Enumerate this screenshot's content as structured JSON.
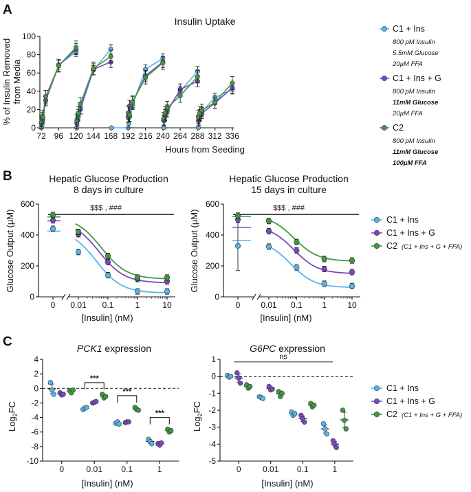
{
  "colors": {
    "c1": "#57b3ea",
    "c1g": "#7b46c2",
    "c2": "#3e9b3a"
  },
  "panels": [
    "A",
    "B",
    "C"
  ],
  "chart_data": [
    {
      "id": "A",
      "type": "line",
      "title": "Insulin Uptake",
      "xlabel": "Hours from Seeding",
      "ylabel": [
        "% of Insulin Removed",
        "from Media"
      ],
      "xlim": [
        70,
        338
      ],
      "ylim": [
        0,
        100
      ],
      "xticks": [
        72,
        96,
        120,
        144,
        168,
        192,
        216,
        240,
        264,
        288,
        312,
        336
      ],
      "yticks": [
        0,
        20,
        40,
        60,
        80,
        100
      ],
      "series": [
        {
          "name": "C1 + Ins",
          "color": "c1",
          "segments": [
            [
              [
                72,
                0
              ],
              [
                73,
                6
              ],
              [
                74,
                12
              ],
              [
                78,
                30
              ],
              [
                96,
                69
              ],
              [
                120,
                83
              ]
            ],
            [
              [
                121,
                0
              ],
              [
                122,
                8
              ],
              [
                123,
                12
              ],
              [
                126,
                20
              ],
              [
                144,
                63
              ],
              [
                168,
                86
              ]
            ],
            [
              [
                169,
                0
              ],
              [
                192,
                0
              ],
              [
                193,
                5
              ],
              [
                194,
                12
              ],
              [
                198,
                25
              ],
              [
                216,
                64
              ],
              [
                240,
                76
              ]
            ],
            [
              [
                241,
                0
              ],
              [
                242,
                8
              ],
              [
                243,
                12
              ],
              [
                246,
                20
              ],
              [
                264,
                40
              ],
              [
                288,
                62
              ]
            ],
            [
              [
                289,
                0
              ],
              [
                290,
                8
              ],
              [
                291,
                12
              ],
              [
                294,
                18
              ],
              [
                312,
                33
              ],
              [
                336,
                42
              ]
            ]
          ]
        },
        {
          "name": "C1 + Ins + G",
          "color": "c1g",
          "segments": [
            [
              [
                72,
                5
              ],
              [
                74,
                9
              ],
              [
                78,
                30
              ],
              [
                96,
                68
              ],
              [
                120,
                86
              ]
            ],
            [
              [
                121,
                5
              ],
              [
                123,
                14
              ],
              [
                126,
                22
              ],
              [
                144,
                64
              ],
              [
                168,
                72
              ]
            ],
            [
              [
                192,
                12
              ],
              [
                194,
                24
              ],
              [
                198,
                28
              ],
              [
                216,
                57
              ],
              [
                240,
                72
              ]
            ],
            [
              [
                241,
                8
              ],
              [
                243,
                14
              ],
              [
                246,
                18
              ],
              [
                264,
                42
              ],
              [
                288,
                51
              ]
            ],
            [
              [
                289,
                8
              ],
              [
                291,
                14
              ],
              [
                294,
                16
              ],
              [
                312,
                27
              ],
              [
                336,
                44
              ]
            ]
          ]
        },
        {
          "name": "C2",
          "color": "c2",
          "segments": [
            [
              [
                72,
                6
              ],
              [
                74,
                12
              ],
              [
                78,
                34
              ],
              [
                96,
                68
              ],
              [
                120,
                88
              ]
            ],
            [
              [
                121,
                8
              ],
              [
                123,
                16
              ],
              [
                126,
                26
              ],
              [
                144,
                65
              ],
              [
                168,
                78
              ]
            ],
            [
              [
                192,
                16
              ],
              [
                194,
                14
              ],
              [
                198,
                28
              ],
              [
                216,
                55
              ],
              [
                240,
                71
              ]
            ],
            [
              [
                241,
                10
              ],
              [
                243,
                16
              ],
              [
                246,
                22
              ],
              [
                264,
                35
              ],
              [
                288,
                56
              ]
            ],
            [
              [
                289,
                12
              ],
              [
                291,
                16
              ],
              [
                294,
                19
              ],
              [
                312,
                28
              ],
              [
                336,
                49
              ]
            ]
          ]
        }
      ],
      "legend": [
        {
          "name": "C1 + Ins",
          "color": "c1",
          "notes": [
            [
              "800 pM Insulin",
              false
            ],
            [
              "5.5mM Glucose",
              false
            ],
            [
              "20µM FFA",
              false
            ]
          ]
        },
        {
          "name": "C1 + Ins + G",
          "color": "c1g",
          "notes": [
            [
              "800 pM Insulin",
              false
            ],
            [
              "11mM Glucose",
              true
            ],
            [
              "20µM FFA",
              false
            ]
          ]
        },
        {
          "name": "C2",
          "color": "c2",
          "notes": [
            [
              "800 pM Insulin",
              false
            ],
            [
              "11mM Glucose",
              true
            ],
            [
              "100µM FFA",
              true
            ]
          ]
        }
      ]
    },
    {
      "id": "B1",
      "type": "scatter",
      "title": [
        "Hepatic Glucose Production",
        "8 days in culture"
      ],
      "xlabel": "[Insulin] (nM)",
      "ylabel": "Glucose Output (µM)",
      "ylim": [
        0,
        600
      ],
      "xticks": [
        "0",
        "0.01",
        "0.1",
        "1",
        "10"
      ],
      "yticks": [
        0,
        200,
        400,
        600
      ],
      "annotation": "$$$ , ###",
      "series": [
        {
          "name": "C1 + Ins",
          "color": "c1",
          "points": [
            [
              "0",
              440
            ],
            [
              0.01,
              290
            ],
            [
              0.1,
              140
            ],
            [
              1,
              35
            ],
            [
              10,
              35
            ]
          ],
          "ctrl": 425,
          "fit": [
            440,
            25,
            0.04
          ]
        },
        {
          "name": "C1 + Ins + G",
          "color": "c1g",
          "points": [
            [
              "0",
              495
            ],
            [
              0.01,
              405
            ],
            [
              0.1,
              225
            ],
            [
              1,
              115
            ],
            [
              10,
              100
            ]
          ],
          "ctrl": 492,
          "fit": [
            495,
            90,
            0.05
          ]
        },
        {
          "name": "C2",
          "color": "c2",
          "points": [
            [
              "0",
              530
            ],
            [
              0.01,
              420
            ],
            [
              0.1,
              265
            ],
            [
              1,
              125
            ],
            [
              10,
              125
            ]
          ],
          "ctrl": 517,
          "fit": [
            520,
            115,
            0.06
          ]
        }
      ]
    },
    {
      "id": "B2",
      "type": "scatter",
      "title": [
        "Hepatic Glucose Production",
        "15 days in culture"
      ],
      "xlabel": "[Insulin] (nM)",
      "ylabel": "Glucose Output (µM)",
      "ylim": [
        0,
        600
      ],
      "xticks": [
        "0",
        "0.01",
        "0.1",
        "1",
        "10"
      ],
      "yticks": [
        0,
        200,
        400,
        600
      ],
      "annotation": "$$$ , ###",
      "series": [
        {
          "name": "C1 + Ins",
          "color": "c1",
          "points": [
            [
              "0",
              330
            ],
            [
              0.01,
              325
            ],
            [
              0.1,
              190
            ],
            [
              1,
              85
            ],
            [
              10,
              70
            ]
          ],
          "ctrl": 365,
          "fit": [
            370,
            60,
            0.06
          ]
        },
        {
          "name": "C1 + Ins + G",
          "color": "c1g",
          "points": [
            [
              "0",
              500
            ],
            [
              0.01,
              425
            ],
            [
              0.1,
              300
            ],
            [
              1,
              180
            ],
            [
              10,
              160
            ]
          ],
          "ctrl": 450,
          "fit": [
            460,
            150,
            0.08
          ]
        },
        {
          "name": "C2",
          "color": "c2",
          "points": [
            [
              "0",
              525
            ],
            [
              0.01,
              490
            ],
            [
              0.1,
              355
            ],
            [
              1,
              245
            ],
            [
              10,
              235
            ]
          ],
          "ctrl": 520,
          "fit": [
            530,
            230,
            0.08
          ]
        }
      ],
      "legend": [
        "C1 + Ins",
        "C1 + Ins + G",
        "C2",
        "(C1 + Ins + G + FFA)"
      ]
    },
    {
      "id": "C1",
      "type": "scatter",
      "title": [
        "PCK1",
        " expression"
      ],
      "xlabel": "[Insulin] (nM)",
      "ylabel": "Log2FC",
      "ylim": [
        -10,
        4
      ],
      "categories": [
        "0",
        "0.01",
        "0.1",
        "1"
      ],
      "yticks": [
        -10,
        -8,
        -6,
        -4,
        -2,
        0,
        2,
        4
      ],
      "significance": "***",
      "series": [
        {
          "name": "C1 + Ins",
          "color": "c1",
          "groups": [
            [
              0.8,
              -0.2,
              -0.8
            ],
            [
              -2.9,
              -2.7,
              -2.6
            ],
            [
              -4.8,
              -4.6,
              -4.9
            ],
            [
              -7.0,
              -7.3,
              -7.6
            ]
          ]
        },
        {
          "name": "C1 + Ins + G",
          "color": "c1g",
          "groups": [
            [
              -0.6,
              -0.9,
              -0.8
            ],
            [
              -2.0,
              -1.9,
              -1.8
            ],
            [
              -4.7,
              -4.6,
              -4.6
            ],
            [
              -7.6,
              -7.8,
              -7.5
            ]
          ]
        },
        {
          "name": "C2",
          "color": "c2",
          "groups": [
            [
              -0.3,
              -0.6,
              -0.2
            ],
            [
              -0.8,
              -1.3,
              -1.1
            ],
            [
              -2.6,
              -2.9,
              -3.0
            ],
            [
              -5.6,
              -6.0,
              -5.8
            ]
          ]
        }
      ]
    },
    {
      "id": "C2",
      "type": "scatter",
      "title": [
        "G6PC",
        " expression"
      ],
      "xlabel": "[Insulin] (nM)",
      "ylabel": "Log2FC",
      "ylim": [
        -5,
        1
      ],
      "categories": [
        "0",
        "0.01",
        "0.1",
        "1"
      ],
      "yticks": [
        -5,
        -4,
        -3,
        -2,
        -1,
        0,
        1
      ],
      "significance": "ns",
      "series": [
        {
          "name": "C1 + Ins",
          "color": "c1",
          "groups": [
            [
              0.05,
              -0.05,
              0.0
            ],
            [
              -1.2,
              -1.25,
              -1.3
            ],
            [
              -2.1,
              -2.3,
              -2.2
            ],
            [
              -2.8,
              -3.1,
              -3.4
            ]
          ]
        },
        {
          "name": "C1 + Ins + G",
          "color": "c1g",
          "groups": [
            [
              0.2,
              -0.1,
              -0.4
            ],
            [
              -0.6,
              -0.8,
              -0.75
            ],
            [
              -2.3,
              -2.5,
              -2.7
            ],
            [
              -3.8,
              -4.0,
              -4.2
            ]
          ]
        },
        {
          "name": "C2",
          "color": "c2",
          "groups": [
            [
              -0.5,
              -0.7,
              -0.6
            ],
            [
              -0.9,
              -1.2,
              -1.0
            ],
            [
              -1.6,
              -1.8,
              -1.7
            ],
            [
              -2.0,
              -2.6,
              -3.1
            ]
          ]
        }
      ],
      "legend": [
        "C1 + Ins",
        "C1 + Ins + G",
        "C2",
        "(C1 + Ins + G + FFA)"
      ]
    }
  ]
}
